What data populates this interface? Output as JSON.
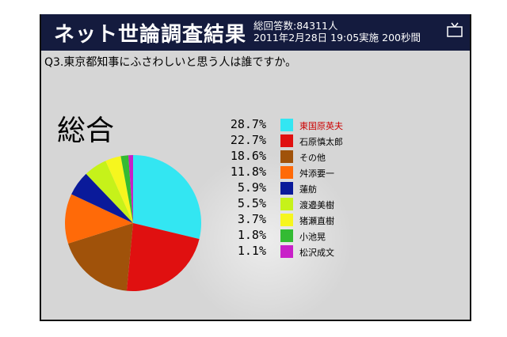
{
  "header": {
    "title": "ネット世論調査結果",
    "respondents": "総回答数:84311人",
    "datetime": "2011年2月28日 19:05実施 200秒間"
  },
  "question": "Q3.東京都知事にふさわしいと思う人は誰ですか。",
  "summary_label": "総合",
  "colors": {
    "header_bg": "#141b3e",
    "panel_bg": "#d6d6d6",
    "highlight_text": "#cc0000"
  },
  "chart_data": {
    "type": "pie",
    "title": "",
    "start_angle_deg": 0,
    "direction": "clockwise",
    "slices": [
      {
        "label": "東国原英夫",
        "value": 28.7,
        "display": "28.7%",
        "color": "#33e6f2",
        "highlight": true
      },
      {
        "label": "石原慎太郎",
        "value": 22.7,
        "display": "22.7%",
        "color": "#e01010"
      },
      {
        "label": "その他",
        "value": 18.6,
        "display": "18.6%",
        "color": "#a0520a"
      },
      {
        "label": "舛添要一",
        "value": 11.8,
        "display": "11.8%",
        "color": "#ff6a08"
      },
      {
        "label": "蓮舫",
        "value": 5.9,
        "display": "5.9%",
        "color": "#0a1a9a"
      },
      {
        "label": "渡邉美樹",
        "value": 5.5,
        "display": "5.5%",
        "color": "#c6f21a"
      },
      {
        "label": "猪瀬直樹",
        "value": 3.7,
        "display": "3.7%",
        "color": "#f6f61e"
      },
      {
        "label": "小池晃",
        "value": 1.8,
        "display": "1.8%",
        "color": "#33bb33"
      },
      {
        "label": "松沢成文",
        "value": 1.1,
        "display": "1.1%",
        "color": "#c820c8"
      }
    ]
  }
}
